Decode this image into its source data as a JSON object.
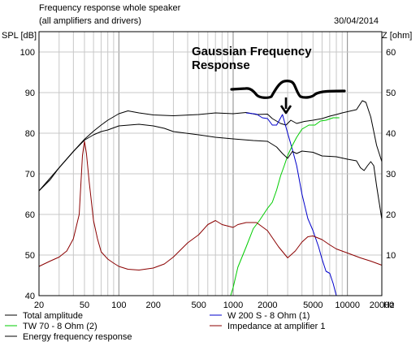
{
  "header": {
    "title": "Frequency response whole speaker",
    "subtitle": "(all amplifiers and drivers)",
    "date": "30/04/2014"
  },
  "axes": {
    "y_left_label": "SPL [dB]",
    "y_right_label": "Z [ohm]",
    "x_unit_label": "Hz"
  },
  "annotation": {
    "line1": "Gaussian Frequency",
    "line2": "Response"
  },
  "chart_data": {
    "type": "line",
    "x_scale": "log",
    "xlim": [
      20,
      20000
    ],
    "ylim": [
      40,
      105
    ],
    "y2lim": [
      0,
      65
    ],
    "x_ticks": [
      {
        "v": 20,
        "label": "20"
      },
      {
        "v": 50,
        "label": "50"
      },
      {
        "v": 100,
        "label": "100"
      },
      {
        "v": 200,
        "label": "200"
      },
      {
        "v": 500,
        "label": "500"
      },
      {
        "v": 1000,
        "label": "1000"
      },
      {
        "v": 2000,
        "label": "2000"
      },
      {
        "v": 5000,
        "label": "5000"
      },
      {
        "v": 10000,
        "label": "10000"
      },
      {
        "v": 20000,
        "label": "20000"
      }
    ],
    "y_ticks": [
      40,
      50,
      60,
      70,
      80,
      90,
      100
    ],
    "y2_ticks": [
      10,
      20,
      30,
      40,
      50,
      60
    ],
    "grid": true,
    "series": [
      {
        "name": "Total amplitude",
        "color": "#000000",
        "axis": "left",
        "points": [
          [
            20,
            65.8
          ],
          [
            25,
            68.5
          ],
          [
            30,
            71.5
          ],
          [
            40,
            75.5
          ],
          [
            50,
            78.5
          ],
          [
            60,
            80.5
          ],
          [
            70,
            82
          ],
          [
            80,
            83.2
          ],
          [
            100,
            84.8
          ],
          [
            120,
            85.5
          ],
          [
            150,
            85
          ],
          [
            200,
            84.5
          ],
          [
            300,
            84.3
          ],
          [
            500,
            84.6
          ],
          [
            700,
            85
          ],
          [
            1000,
            84.8
          ],
          [
            1300,
            85.1
          ],
          [
            1600,
            84.6
          ],
          [
            2000,
            84.7
          ],
          [
            2200,
            83.6
          ],
          [
            2600,
            82.4
          ],
          [
            2900,
            82
          ],
          [
            3200,
            83.2
          ],
          [
            3600,
            82.4
          ],
          [
            4200,
            82.9
          ],
          [
            5000,
            83.2
          ],
          [
            6000,
            83.6
          ],
          [
            7000,
            84.2
          ],
          [
            8000,
            84.6
          ],
          [
            9000,
            85
          ],
          [
            10000,
            85.3
          ],
          [
            12000,
            85.8
          ],
          [
            13500,
            88
          ],
          [
            14500,
            87.6
          ],
          [
            16000,
            84
          ],
          [
            18000,
            77
          ],
          [
            20000,
            73
          ]
        ]
      },
      {
        "name": "W 200 S - 8 Ohm (1)",
        "color": "#0000cc",
        "axis": "left",
        "points": [
          [
            1300,
            85
          ],
          [
            1600,
            84.7
          ],
          [
            1800,
            83.8
          ],
          [
            2000,
            83.6
          ],
          [
            2200,
            82
          ],
          [
            2400,
            82
          ],
          [
            2700,
            84.6
          ],
          [
            3000,
            80
          ],
          [
            3300,
            76
          ],
          [
            3600,
            72
          ],
          [
            4000,
            65
          ],
          [
            4500,
            59
          ],
          [
            5000,
            56
          ],
          [
            5600,
            52
          ],
          [
            6000,
            49
          ],
          [
            6500,
            46
          ],
          [
            7000,
            45.5
          ],
          [
            7500,
            43
          ],
          [
            8000,
            40
          ]
        ]
      },
      {
        "name": "TW 70 - 8 Ohm (2)",
        "color": "#00cc00",
        "axis": "left",
        "points": [
          [
            20,
            40
          ],
          [
            100,
            40
          ],
          [
            500,
            40
          ],
          [
            950,
            40
          ],
          [
            1000,
            42
          ],
          [
            1100,
            47
          ],
          [
            1300,
            52
          ],
          [
            1500,
            56.5
          ],
          [
            1700,
            58.5
          ],
          [
            2000,
            61.5
          ],
          [
            2200,
            63
          ],
          [
            2400,
            66
          ],
          [
            2600,
            69.5
          ],
          [
            2800,
            72
          ],
          [
            3000,
            74.5
          ],
          [
            3300,
            77
          ],
          [
            3600,
            79
          ],
          [
            4000,
            81
          ],
          [
            4600,
            82
          ],
          [
            5200,
            82
          ],
          [
            5800,
            83
          ],
          [
            6500,
            83.2
          ],
          [
            7500,
            83.8
          ],
          [
            8500,
            83.8
          ]
        ]
      },
      {
        "name": "Energy frequency response",
        "color": "#000000",
        "axis": "left",
        "points": [
          [
            20,
            65.8
          ],
          [
            30,
            71.5
          ],
          [
            40,
            75.5
          ],
          [
            50,
            78.3
          ],
          [
            60,
            79.6
          ],
          [
            70,
            80.4
          ],
          [
            80,
            80.8
          ],
          [
            100,
            81.8
          ],
          [
            150,
            82.2
          ],
          [
            200,
            81.8
          ],
          [
            250,
            81.2
          ],
          [
            300,
            80.4
          ],
          [
            500,
            79.6
          ],
          [
            700,
            79
          ],
          [
            1000,
            78.6
          ],
          [
            1500,
            78.2
          ],
          [
            2000,
            78
          ],
          [
            2400,
            76.6
          ],
          [
            2700,
            75
          ],
          [
            3000,
            73.8
          ],
          [
            3300,
            75.5
          ],
          [
            3600,
            75
          ],
          [
            4000,
            75.6
          ],
          [
            5000,
            75.3
          ],
          [
            6000,
            74.4
          ],
          [
            7000,
            74.3
          ],
          [
            8000,
            74.2
          ],
          [
            10000,
            73.6
          ],
          [
            12000,
            73.2
          ],
          [
            13000,
            71.5
          ],
          [
            14000,
            70.8
          ],
          [
            15000,
            72
          ],
          [
            16000,
            73
          ],
          [
            17000,
            72
          ],
          [
            18000,
            67
          ],
          [
            20000,
            58.8
          ]
        ]
      },
      {
        "name": "Impedance at amplifier 1",
        "color": "#8b0000",
        "axis": "right",
        "points": [
          [
            20,
            7.2
          ],
          [
            25,
            8.5
          ],
          [
            30,
            9.5
          ],
          [
            35,
            11
          ],
          [
            40,
            14
          ],
          [
            45,
            20
          ],
          [
            48,
            34.5
          ],
          [
            50,
            38
          ],
          [
            52,
            35
          ],
          [
            55,
            28
          ],
          [
            60,
            18.5
          ],
          [
            65,
            14
          ],
          [
            70,
            10.8
          ],
          [
            80,
            9
          ],
          [
            90,
            8
          ],
          [
            100,
            7.2
          ],
          [
            120,
            6.5
          ],
          [
            150,
            6.3
          ],
          [
            200,
            6.8
          ],
          [
            250,
            7.8
          ],
          [
            300,
            9.5
          ],
          [
            400,
            13
          ],
          [
            500,
            15
          ],
          [
            600,
            17.5
          ],
          [
            700,
            18.5
          ],
          [
            800,
            17.5
          ],
          [
            1000,
            16.8
          ],
          [
            1100,
            17.5
          ],
          [
            1300,
            18
          ],
          [
            1600,
            18
          ],
          [
            2000,
            16
          ],
          [
            2500,
            12
          ],
          [
            3000,
            9.3
          ],
          [
            3500,
            11
          ],
          [
            4000,
            13.2
          ],
          [
            4500,
            14.5
          ],
          [
            5000,
            14.7
          ],
          [
            6000,
            13.8
          ],
          [
            7000,
            12.5
          ],
          [
            8000,
            11.5
          ],
          [
            10000,
            10.5
          ],
          [
            13000,
            9.3
          ],
          [
            16000,
            8.5
          ],
          [
            20000,
            7.5
          ]
        ]
      }
    ],
    "legend": [
      {
        "label": "Total amplitude",
        "color": "#000000"
      },
      {
        "label": "W 200 S - 8 Ohm (1)",
        "color": "#0000cc"
      },
      {
        "label": "TW 70 - 8 Ohm (2)",
        "color": "#00cc00"
      },
      {
        "label": "Impedance at amplifier 1",
        "color": "#8b0000"
      },
      {
        "label": "Energy frequency response",
        "color": "#000000"
      }
    ]
  }
}
